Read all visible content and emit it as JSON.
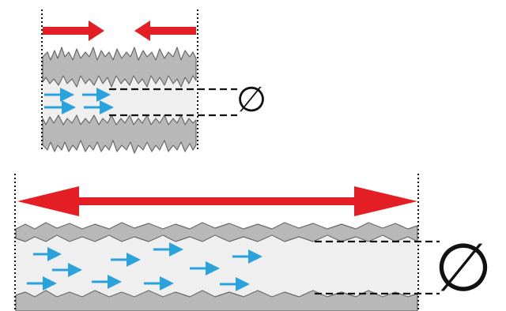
{
  "symbols": {
    "diameter": "∅"
  },
  "panels": [
    {
      "id": "compressed",
      "force": "inward"
    },
    {
      "id": "stretched",
      "force": "outward"
    }
  ],
  "colors": {
    "force_arrow": "#e31e24",
    "flow_arrow": "#2aa3dc",
    "wall": "#b8b8b8",
    "channel": "#efefef"
  }
}
